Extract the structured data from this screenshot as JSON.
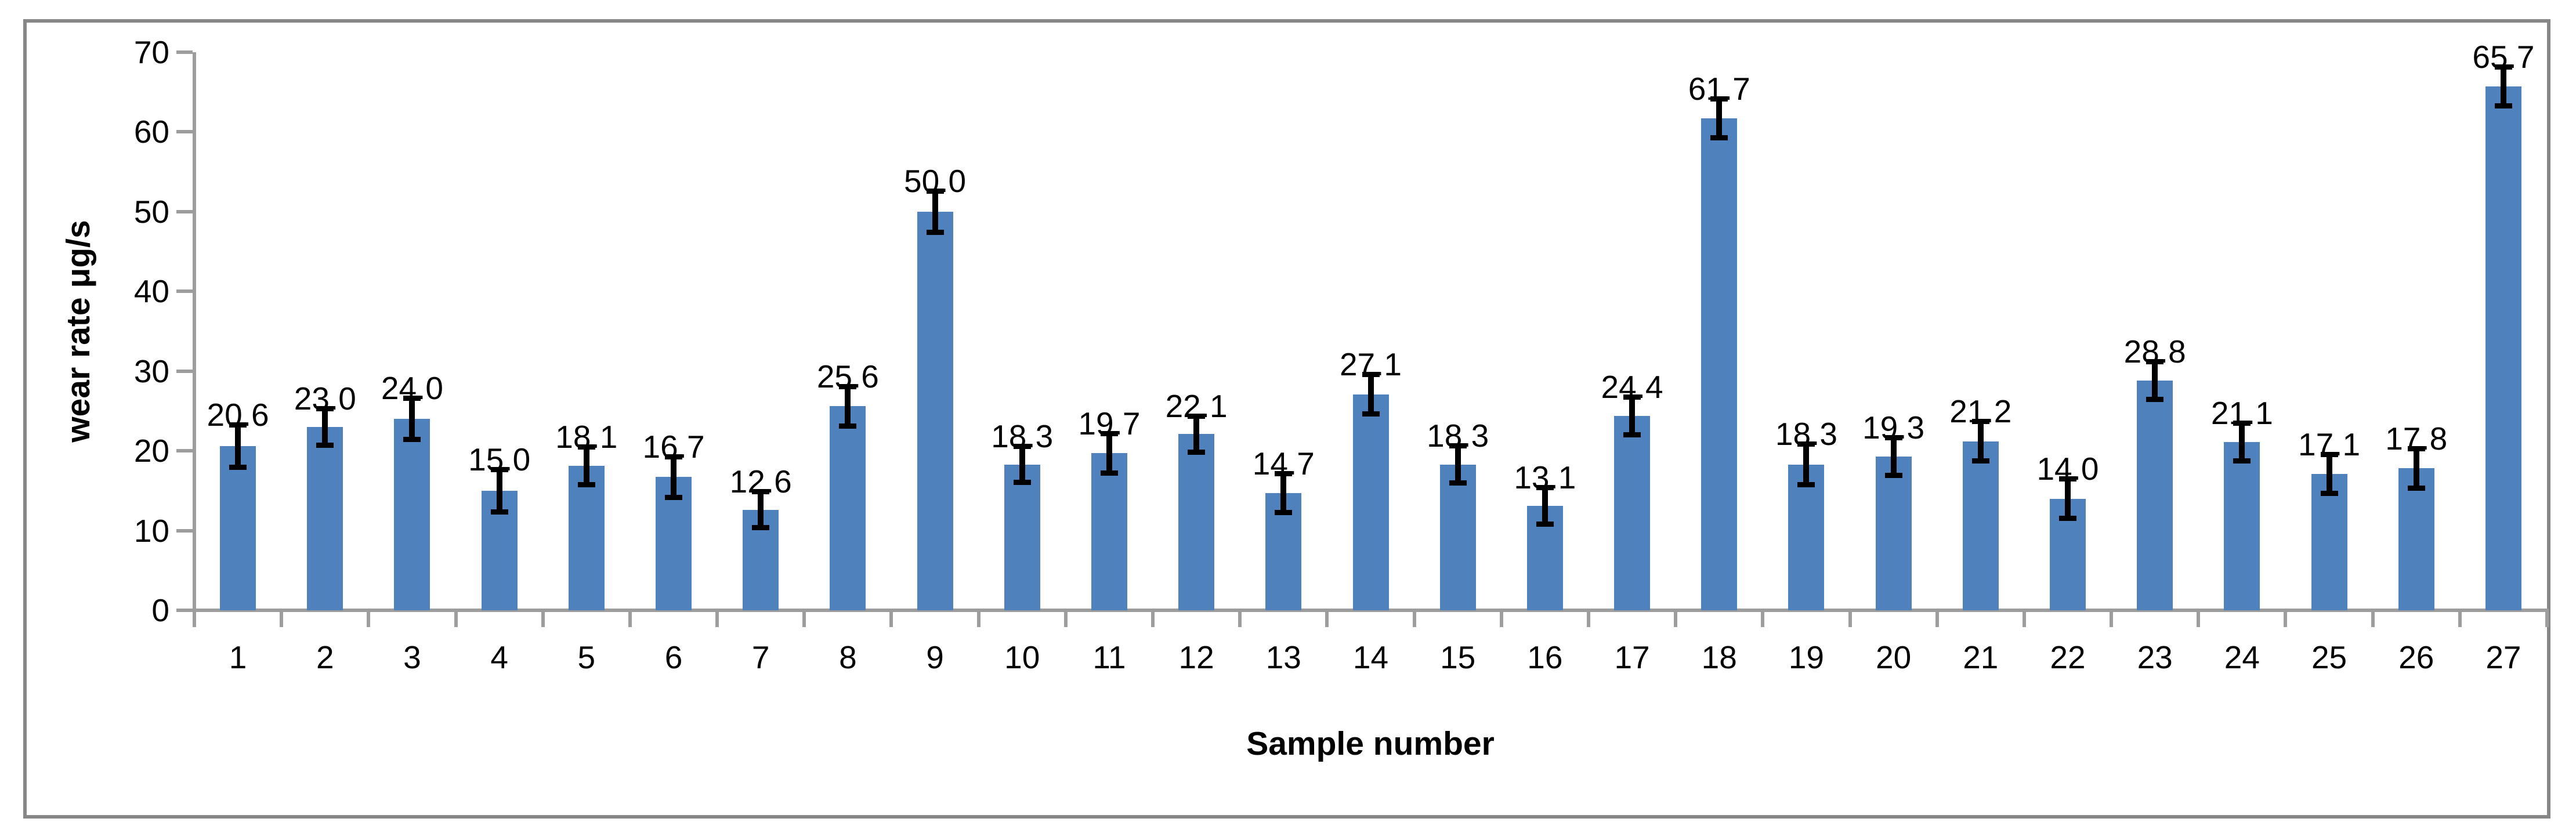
{
  "chart_data": {
    "type": "bar",
    "title": "",
    "xlabel": "Sample number",
    "ylabel": "wear rate μg/s",
    "categories": [
      "1",
      "2",
      "3",
      "4",
      "5",
      "6",
      "7",
      "8",
      "9",
      "10",
      "11",
      "12",
      "13",
      "14",
      "15",
      "16",
      "17",
      "18",
      "19",
      "20",
      "21",
      "22",
      "23",
      "24",
      "25",
      "26",
      "27"
    ],
    "values": [
      20.6,
      23.0,
      24.0,
      15.0,
      18.1,
      16.7,
      12.6,
      25.6,
      50.0,
      18.3,
      19.7,
      22.1,
      14.7,
      27.1,
      18.3,
      13.1,
      24.4,
      61.7,
      18.3,
      19.3,
      21.2,
      14.0,
      28.8,
      21.1,
      17.1,
      17.8,
      65.7
    ],
    "value_labels": [
      "20.6",
      "23.0",
      "24.0",
      "15.0",
      "18.1",
      "16.7",
      "12.6",
      "25.6",
      "50.0",
      "18.3",
      "19.7",
      "22.1",
      "14.7",
      "27.1",
      "18.3",
      "13.1",
      "24.4",
      "61.7",
      "18.3",
      "19.3",
      "21.2",
      "14.0",
      "28.8",
      "21.1",
      "17.1",
      "17.8",
      "65.7"
    ],
    "error_bars": [
      2.7,
      2.3,
      2.6,
      2.7,
      2.4,
      2.6,
      2.3,
      2.5,
      2.6,
      2.3,
      2.5,
      2.3,
      2.5,
      2.5,
      2.4,
      2.3,
      2.4,
      2.5,
      2.6,
      2.4,
      2.5,
      2.5,
      2.4,
      2.4,
      2.5,
      2.5,
      2.5
    ],
    "ylim": [
      0,
      70
    ],
    "yticks": [
      0,
      10,
      20,
      30,
      40,
      50,
      60,
      70
    ],
    "grid": false,
    "legend": null,
    "bar_color": "#4f81bd",
    "error_color": "#000000",
    "axis_color": "#9d9d9d",
    "frame_color": "#878787",
    "text_color": "#000000"
  }
}
